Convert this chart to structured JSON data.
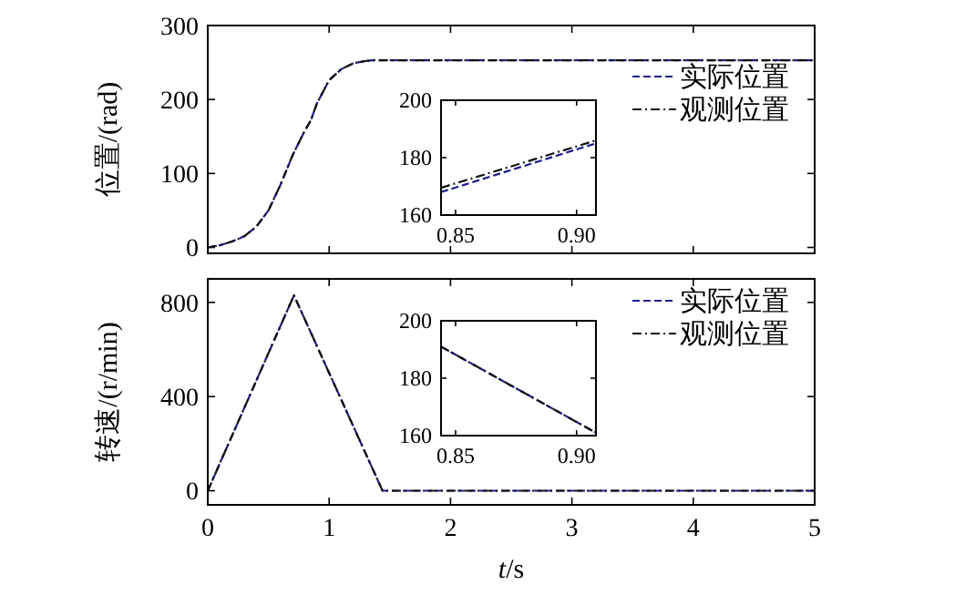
{
  "chart_data": [
    {
      "type": "line",
      "ylabel": "位置/(rad)",
      "xlim": [
        0,
        5
      ],
      "xticks": [
        0,
        1,
        2,
        3,
        4,
        5
      ],
      "ylim": [
        -8,
        300
      ],
      "yticks": [
        0,
        100,
        200,
        300
      ],
      "tick_labels": "y",
      "legend": "top right",
      "grid": false,
      "series": [
        {
          "name": "实际位置",
          "color": "#1c1c8c",
          "line_style": "dashed",
          "x": [
            0,
            0.1,
            0.2,
            0.3,
            0.4,
            0.5,
            0.6,
            0.7,
            0.8,
            0.85,
            0.9,
            1.0,
            1.1,
            1.2,
            1.3,
            1.36,
            5
          ],
          "values": [
            0,
            3,
            8,
            15,
            28,
            50,
            85,
            125,
            158,
            172,
            195,
            226,
            241,
            249,
            252,
            253,
            253
          ]
        },
        {
          "name": "观测位置",
          "color": "#111111",
          "line_style": "dotted",
          "x": [
            0,
            0.1,
            0.2,
            0.3,
            0.4,
            0.5,
            0.6,
            0.7,
            0.8,
            0.85,
            0.9,
            1.0,
            1.1,
            1.2,
            1.3,
            1.36,
            5
          ],
          "values": [
            0,
            3,
            8,
            15,
            28,
            50,
            85,
            125,
            158,
            172,
            195,
            226,
            241,
            249,
            252,
            253,
            253
          ]
        }
      ]
    },
    {
      "type": "line",
      "xlim": [
        0.844,
        0.908
      ],
      "xticks": [
        0.85,
        {
          "value": 0.9,
          "label": "0.90"
        }
      ],
      "ylim": [
        160,
        200
      ],
      "yticks": [
        160,
        180,
        200
      ],
      "legend": false,
      "grid": false,
      "series": [
        {
          "color": "#1c1c8c",
          "line_style": "dashed",
          "x": [
            0.844,
            0.908
          ],
          "values": [
            168,
            185
          ]
        },
        {
          "color": "#111111",
          "line_style": "dotted",
          "x": [
            0.844,
            0.908
          ],
          "values": [
            169.5,
            186
          ]
        }
      ]
    },
    {
      "type": "line",
      "xlabel": "*t*/s",
      "ylabel": "转速/(r/min)",
      "xlim": [
        0,
        5
      ],
      "xticks": [
        0,
        1,
        2,
        3,
        4,
        5
      ],
      "ylim": [
        -60,
        900
      ],
      "yticks": [
        0,
        400,
        800
      ],
      "legend": "top right",
      "grid": false,
      "series": [
        {
          "name": "实际位置",
          "color": "#1c1c8c",
          "line_style": "dashed",
          "x": [
            0,
            0.71,
            1.44,
            5
          ],
          "values": [
            0,
            830,
            0,
            0
          ]
        },
        {
          "name": "观测位置",
          "color": "#111111",
          "line_style": "dotted",
          "x": [
            0,
            0.71,
            1.44,
            5
          ],
          "values": [
            0,
            830,
            0,
            0
          ]
        }
      ]
    },
    {
      "type": "line",
      "xlim": [
        0.844,
        0.908
      ],
      "xticks": [
        0.85,
        {
          "value": 0.9,
          "label": "0.90"
        }
      ],
      "ylim": [
        160,
        200
      ],
      "yticks": [
        160,
        180,
        200
      ],
      "legend": false,
      "grid": false,
      "series": [
        {
          "color": "#1c1c8c",
          "line_style": "dashed",
          "x": [
            0.844,
            0.908
          ],
          "values": [
            191,
            161
          ]
        },
        {
          "color": "#111111",
          "line_style": "dotted",
          "x": [
            0.844,
            0.908
          ],
          "values": [
            191,
            161
          ]
        }
      ]
    }
  ]
}
